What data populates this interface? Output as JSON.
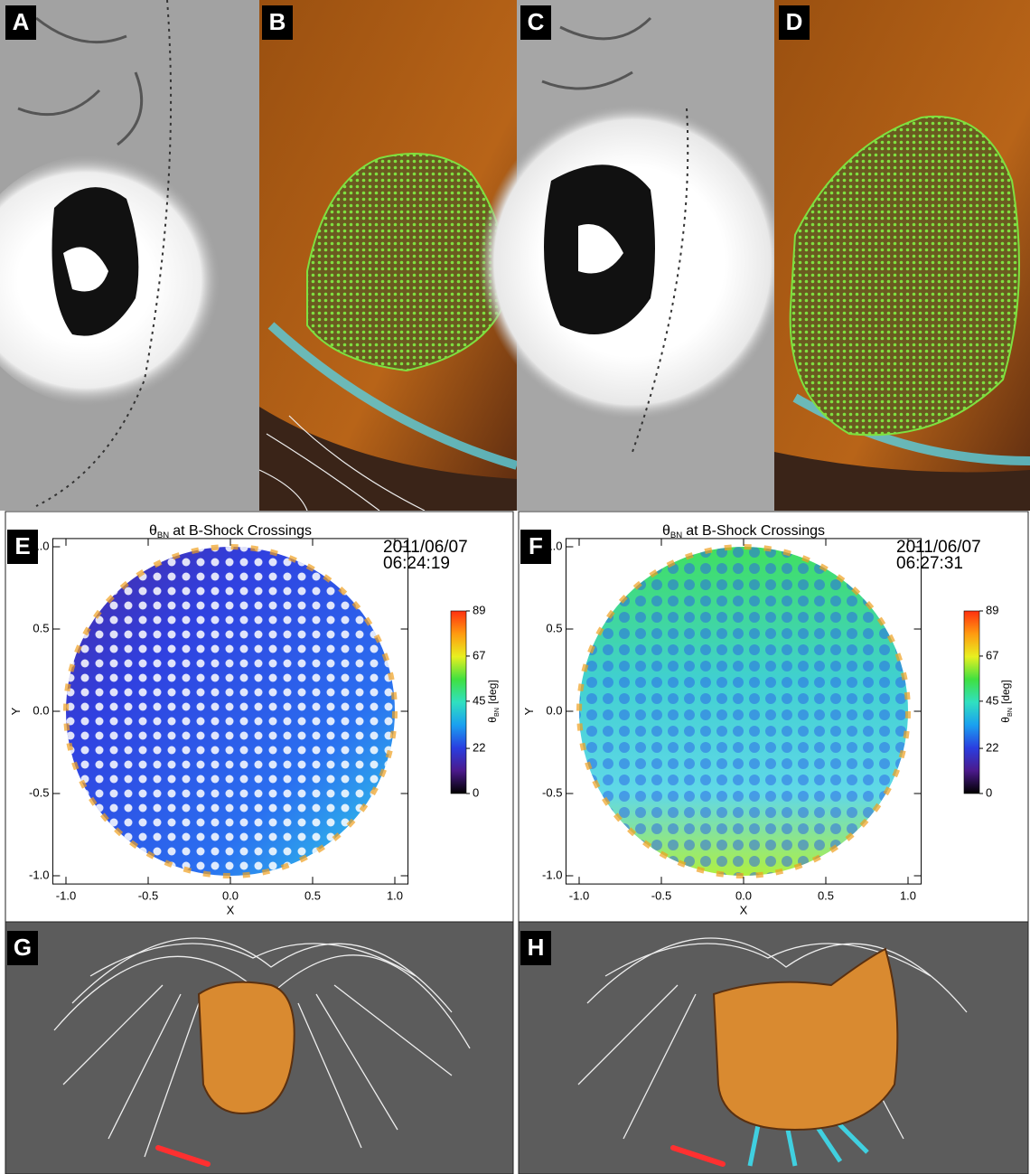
{
  "panel_labels": [
    "A",
    "B",
    "C",
    "D",
    "E",
    "F",
    "G",
    "H"
  ],
  "chart_data": [
    {
      "type": "scatter",
      "title": {
        "symbol": "θ",
        "subscript": "BN",
        "text": "at B-Shock Crossings"
      },
      "date": "2011/06/07",
      "time": "06:24:19",
      "xlabel": "X",
      "ylabel": "Y",
      "xlim": [
        -1.08,
        1.08
      ],
      "ylim": [
        -1.05,
        1.05
      ],
      "xticks": [
        {
          "value": -1,
          "label": "-1.0"
        },
        -0.5,
        {
          "value": 0,
          "label": "0.0"
        },
        0.5,
        {
          "value": 1,
          "label": "1.0"
        }
      ],
      "yticks": [
        {
          "value": -1,
          "label": "-1.0"
        },
        -0.5,
        {
          "value": 0,
          "label": "0.0"
        },
        0.5,
        {
          "value": 1,
          "label": "1.0"
        }
      ],
      "colorbar": {
        "label": {
          "symbol": "θ",
          "subscript": "BN",
          "text": "[deg]"
        },
        "clim": [
          0,
          89
        ],
        "ticks": [
          0,
          22,
          45,
          67,
          89
        ],
        "colormap": [
          "#000000",
          "#4b1a8c",
          "#2a3ee0",
          "#1aa0f0",
          "#30e0c0",
          "#40e040",
          "#e8f020",
          "#ff9a10",
          "#ff3010"
        ]
      }
    },
    {
      "type": "scatter",
      "title": {
        "symbol": "θ",
        "subscript": "BN",
        "text": "at B-Shock Crossings"
      },
      "date": "2011/06/07",
      "time": "06:27:31",
      "xlabel": "X",
      "ylabel": "Y",
      "xlim": [
        -1.08,
        1.08
      ],
      "ylim": [
        -1.05,
        1.05
      ],
      "xticks": [
        {
          "value": -1,
          "label": "-1.0"
        },
        -0.5,
        {
          "value": 0,
          "label": "0.0"
        },
        0.5,
        {
          "value": 1,
          "label": "1.0"
        }
      ],
      "yticks": [
        {
          "value": -1,
          "label": "-1.0"
        },
        -0.5,
        {
          "value": 0,
          "label": "0.0"
        },
        0.5,
        {
          "value": 1,
          "label": "1.0"
        }
      ],
      "colorbar": {
        "label": {
          "symbol": "θ",
          "subscript": "BN",
          "text": "[deg]"
        },
        "clim": [
          0,
          89
        ],
        "ticks": [
          0,
          22,
          45,
          67,
          89
        ],
        "colormap": [
          "#000000",
          "#4b1a8c",
          "#2a3ee0",
          "#1aa0f0",
          "#30e0c0",
          "#40e040",
          "#e8f020",
          "#ff9a10",
          "#ff3010"
        ]
      }
    }
  ]
}
